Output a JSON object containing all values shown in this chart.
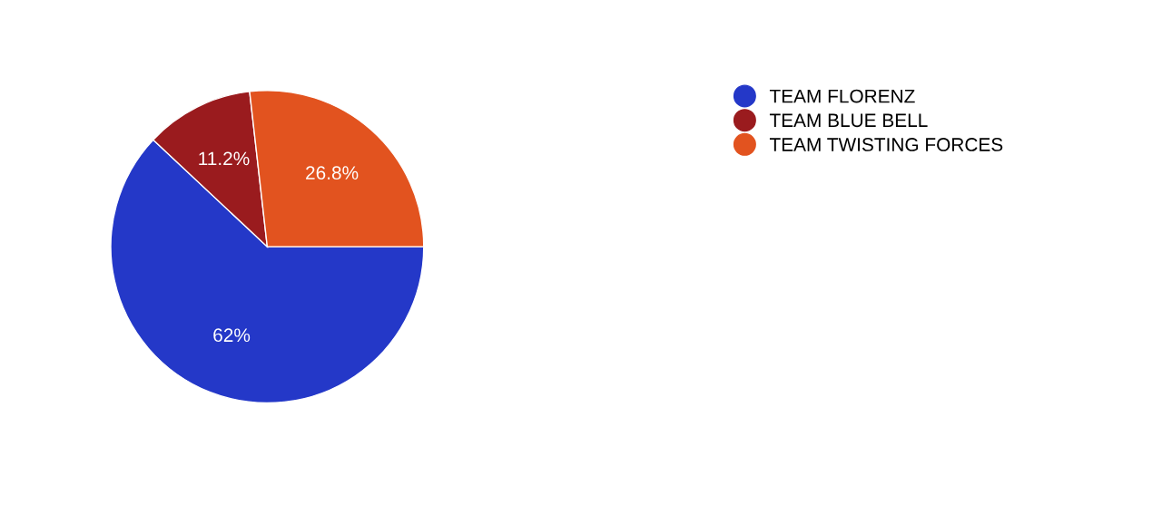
{
  "chart_data": {
    "type": "pie",
    "categories": [
      "TEAM FLORENZ",
      "TEAM BLUE BELL",
      "TEAM TWISTING FORCES"
    ],
    "values": [
      62,
      11.2,
      26.8
    ],
    "value_labels": [
      "62%",
      "11.2%",
      "26.8%"
    ],
    "colors": [
      "#2438c8",
      "#9a1b1e",
      "#e2531f"
    ],
    "legend": "top right"
  }
}
